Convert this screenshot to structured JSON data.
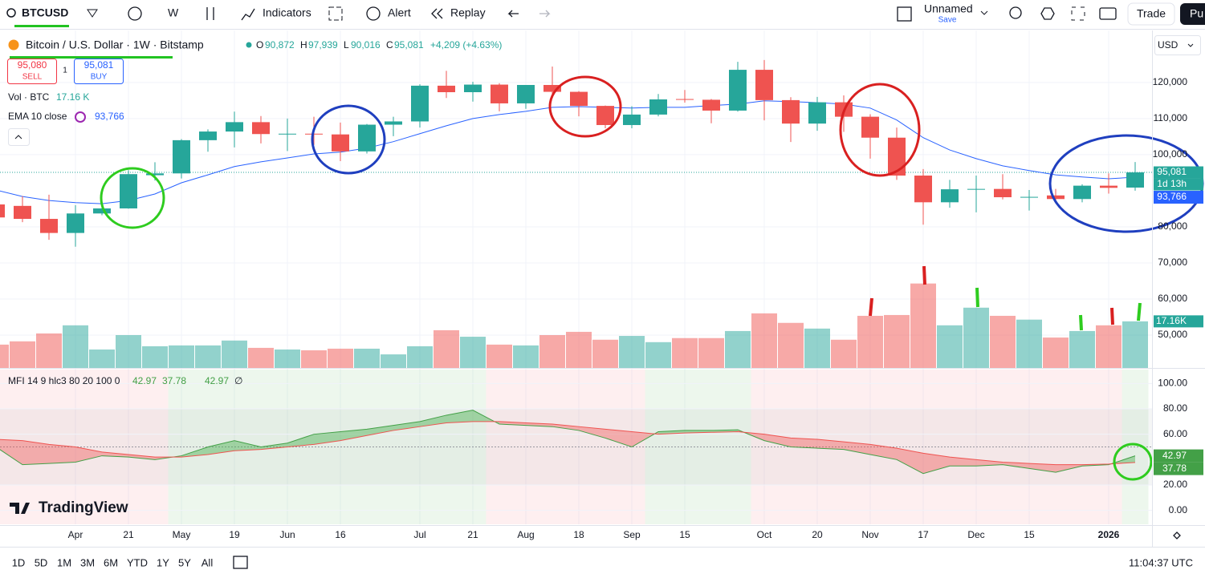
{
  "toolbar": {
    "symbol": "BTCUSD",
    "interval": "W",
    "indicators": "Indicators",
    "alert": "Alert",
    "replay": "Replay",
    "layout_name": "Unnamed",
    "layout_status": "Save",
    "trade": "Trade",
    "publish": "Pu"
  },
  "legend": {
    "title": "Bitcoin / U.S. Dollar · 1W · Bitstamp",
    "ohlc": [
      "O",
      "90,872",
      "H",
      "97,939",
      "L",
      "90,016",
      "C",
      "95,081"
    ],
    "change": "+4,209 (+4.63%)",
    "sell_price": "95,080",
    "sell": "SELL",
    "quantity": "1",
    "buy_price": "95,081",
    "buy": "BUY",
    "volume_value": "17.16 K",
    "ema_value": "93,766",
    "mfi_values": [
      "42.97",
      "37.78",
      "42.97",
      "∅"
    ]
  },
  "price_axis": {
    "currency": "USD",
    "last_price": "95,081",
    "countdown": "1d 13h",
    "ema": "93,766",
    "volume": "17.16K",
    "mfi": "42.97",
    "mfi_signal": "37.78"
  },
  "logo": "TradingView",
  "bottom_toolbar": {
    "ranges": [
      "1D",
      "5D",
      "1M",
      "3M",
      "6M",
      "YTD",
      "1Y",
      "5Y",
      "All"
    ],
    "clock": "11:04:37 UTC"
  },
  "chart_data": {
    "type": "candlestick",
    "categories": [
      null,
      null,
      null,
      "Apr",
      null,
      "21",
      null,
      "May",
      null,
      "19",
      null,
      "Jun",
      null,
      "16",
      null,
      null,
      "Jul",
      null,
      "21",
      null,
      "Aug",
      null,
      "18",
      null,
      "Sep",
      null,
      "15",
      null,
      null,
      "Oct",
      null,
      "20",
      null,
      "Nov",
      null,
      "17",
      null,
      "Dec",
      null,
      "15",
      null,
      null,
      "2026",
      null
    ],
    "open": [
      86200,
      85800,
      82200,
      78300,
      83700,
      85100,
      94300,
      94800,
      104000,
      106400,
      109000,
      105700,
      105800,
      105600,
      100900,
      108300,
      109200,
      119100,
      117300,
      119400,
      114200,
      119300,
      117400,
      113500,
      108200,
      111100,
      115400,
      115200,
      112200,
      123500,
      115100,
      108600,
      114500,
      110500,
      104700,
      94200,
      86800,
      90300,
      90500,
      88200,
      88700,
      87700,
      91400,
      90872
    ],
    "high": [
      87000,
      88500,
      88900,
      86000,
      86400,
      95700,
      97900,
      104300,
      107000,
      111900,
      110700,
      110000,
      110500,
      108900,
      108500,
      110500,
      119500,
      123200,
      120200,
      119800,
      119300,
      124400,
      117600,
      113600,
      113400,
      116800,
      117900,
      115400,
      125700,
      126200,
      115900,
      116000,
      116400,
      111200,
      107500,
      96000,
      93000,
      94200,
      94600,
      90200,
      90500,
      91800,
      94800,
      97939
    ],
    "low": [
      81500,
      81300,
      76400,
      74500,
      83200,
      85000,
      92800,
      93400,
      100800,
      102000,
      103100,
      101000,
      102700,
      98200,
      100300,
      105100,
      107500,
      115700,
      114700,
      112000,
      112700,
      116800,
      110600,
      107300,
      107300,
      110600,
      114400,
      108700,
      111900,
      109500,
      103500,
      106600,
      106300,
      98900,
      93000,
      80600,
      85300,
      84000,
      87600,
      84500,
      86600,
      86800,
      89200,
      90016
    ],
    "close": [
      82600,
      82200,
      78300,
      83700,
      85100,
      94600,
      94800,
      104000,
      106400,
      109000,
      105700,
      105800,
      105600,
      100900,
      108300,
      109200,
      119100,
      117300,
      119400,
      114200,
      119300,
      117400,
      113500,
      108200,
      111100,
      115300,
      115200,
      112200,
      123500,
      115100,
      108600,
      114500,
      110500,
      104700,
      94200,
      86800,
      90400,
      90500,
      88200,
      88300,
      87700,
      91400,
      90800,
      95081
    ],
    "up_color": "#26a69a",
    "down_color": "#ef5350",
    "ylim": [
      40900,
      134400
    ],
    "yticks": [
      {
        "value": 120000,
        "label": "120,000"
      },
      {
        "value": 110000,
        "label": "110,000"
      },
      {
        "value": 100000,
        "label": "100,000"
      },
      {
        "value": 80000,
        "label": "80,000"
      },
      {
        "value": 70000,
        "label": "70,000"
      },
      {
        "value": 60000,
        "label": "60,000"
      },
      {
        "value": 50000,
        "label": "50,000"
      }
    ],
    "grid": true,
    "overlays": [
      {
        "name": "EMA 10 close",
        "color": "#2962ff",
        "values": [
          90200,
          88400,
          87300,
          86700,
          86400,
          87300,
          89100,
          92200,
          94400,
          96700,
          98000,
          99100,
          100200,
          100700,
          101800,
          103600,
          105800,
          108000,
          110000,
          111100,
          112000,
          113100,
          113300,
          113100,
          112900,
          113100,
          113100,
          113600,
          114000,
          114900,
          114700,
          114400,
          114000,
          112900,
          109600,
          104700,
          101300,
          98900,
          96900,
          95600,
          94400,
          93800,
          93300,
          93766
        ]
      }
    ],
    "volume": {
      "name": "Vol · BTC",
      "ylim": [
        0,
        40000
      ],
      "values": [
        8600,
        9800,
        12700,
        15700,
        6800,
        12100,
        8000,
        8300,
        8300,
        10100,
        7400,
        6800,
        6500,
        7100,
        7100,
        5000,
        8000,
        13900,
        11500,
        8600,
        8300,
        12100,
        13300,
        10400,
        11800,
        9500,
        11000,
        11000,
        13600,
        20100,
        16600,
        14500,
        10400,
        19200,
        19500,
        31100,
        15700,
        22200,
        19200,
        17800,
        11200,
        13600,
        15700,
        17160
      ]
    },
    "mfi": {
      "name": "MFI 14 9 hlc3 80 20 100 0",
      "ylim": [
        -11,
        111
      ],
      "yticks": [
        {
          "value": 100,
          "label": "100.00"
        },
        {
          "value": 80,
          "label": "80.00"
        },
        {
          "value": 60,
          "label": "60.00"
        },
        {
          "value": 20,
          "label": "20.00"
        },
        {
          "value": 0,
          "label": "0.00"
        }
      ],
      "bands": [
        80,
        50,
        20
      ],
      "series": [
        {
          "color": "#43a047",
          "values": [
            50,
            36,
            37,
            38,
            43,
            42,
            40,
            43,
            50,
            55,
            50,
            53,
            60,
            62,
            64,
            67,
            70,
            75,
            79,
            68,
            67,
            66,
            63,
            57,
            50,
            62,
            63,
            63,
            63.5,
            55,
            50,
            49,
            48,
            44,
            40,
            29,
            35,
            35,
            36,
            33,
            30,
            35,
            36,
            42.97
          ]
        },
        {
          "color": "#ef5350",
          "values": [
            56,
            55,
            52,
            50,
            46,
            44,
            42,
            42,
            44,
            47,
            48,
            50,
            52,
            55,
            59,
            63,
            66,
            69,
            70,
            70,
            69,
            68,
            66,
            64,
            62,
            60,
            61,
            61.5,
            62,
            60,
            57,
            56,
            54,
            52,
            49,
            45,
            42,
            40,
            38,
            37,
            36,
            36,
            36.5,
            37.78
          ]
        }
      ]
    }
  }
}
